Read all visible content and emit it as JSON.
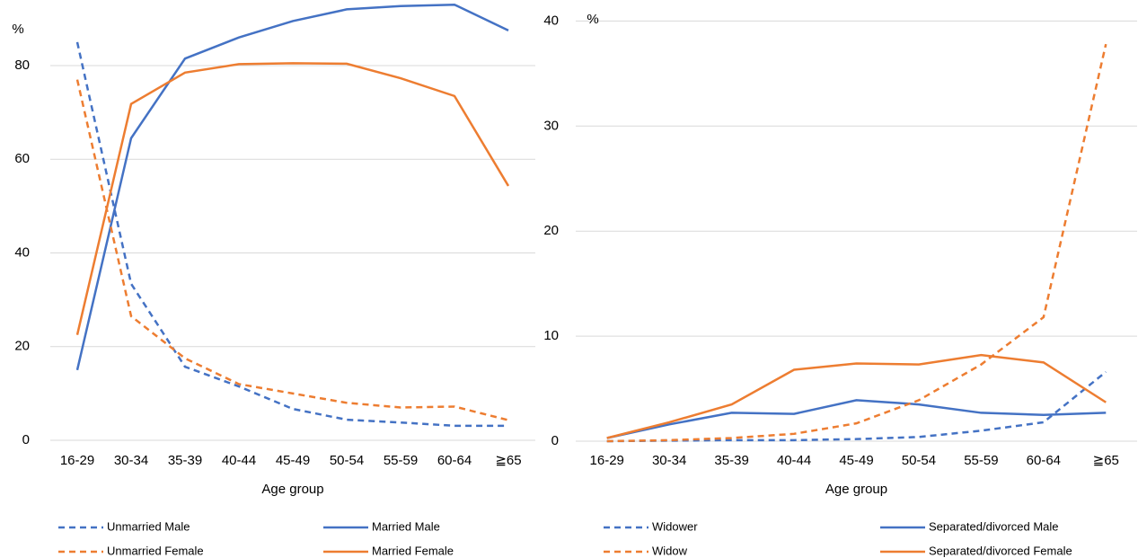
{
  "chart_data": [
    {
      "type": "line",
      "y_label": "%",
      "x_label": "Age group",
      "categories": [
        "16-29",
        "30-34",
        "35-39",
        "40-44",
        "45-49",
        "50-54",
        "55-59",
        "60-64",
        "≧65"
      ],
      "ylim": [
        0,
        94
      ],
      "yticks": [
        0,
        20,
        40,
        60,
        80
      ],
      "grid": true,
      "series": [
        {
          "name": "Unmarried Male",
          "color": "#4472c4",
          "dashed": true,
          "values": [
            85,
            33.4,
            15.7,
            11.5,
            6.7,
            4.4,
            3.8,
            3.1,
            3.1
          ]
        },
        {
          "name": "Married Male",
          "color": "#4472c4",
          "dashed": false,
          "values": [
            15,
            64.5,
            81.5,
            86,
            89.5,
            92,
            92.7,
            93,
            87.5
          ]
        },
        {
          "name": "Unmarried Female",
          "color": "#ed7d31",
          "dashed": true,
          "values": [
            77,
            26.5,
            17.5,
            12,
            10,
            8,
            7,
            7.2,
            4.3
          ]
        },
        {
          "name": "Married Female",
          "color": "#ed7d31",
          "dashed": false,
          "values": [
            22.5,
            71.8,
            78.5,
            80.3,
            80.5,
            80.4,
            77.3,
            73.5,
            54.3
          ]
        }
      ]
    },
    {
      "type": "line",
      "y_label": "%",
      "x_label": "Age group",
      "categories": [
        "16-29",
        "30-34",
        "35-39",
        "40-44",
        "45-49",
        "50-54",
        "55-59",
        "60-64",
        "≧65"
      ],
      "ylim": [
        0,
        42
      ],
      "yticks": [
        0,
        10,
        20,
        30,
        40
      ],
      "grid": true,
      "series": [
        {
          "name": "Widower",
          "color": "#4472c4",
          "dashed": true,
          "values": [
            0,
            0.05,
            0.1,
            0.1,
            0.2,
            0.4,
            1.0,
            1.8,
            6.6
          ]
        },
        {
          "name": "Separated/divorced Male",
          "color": "#4472c4",
          "dashed": false,
          "values": [
            0.3,
            1.6,
            2.7,
            2.6,
            3.9,
            3.5,
            2.7,
            2.5,
            2.7
          ]
        },
        {
          "name": "Widow",
          "color": "#ed7d31",
          "dashed": true,
          "values": [
            0,
            0.1,
            0.3,
            0.7,
            1.7,
            3.9,
            7.3,
            11.8,
            37.8
          ]
        },
        {
          "name": "Separated/divorced Female",
          "color": "#ed7d31",
          "dashed": false,
          "values": [
            0.3,
            1.8,
            3.5,
            6.8,
            7.4,
            7.3,
            8.2,
            7.5,
            3.7
          ]
        }
      ]
    }
  ]
}
